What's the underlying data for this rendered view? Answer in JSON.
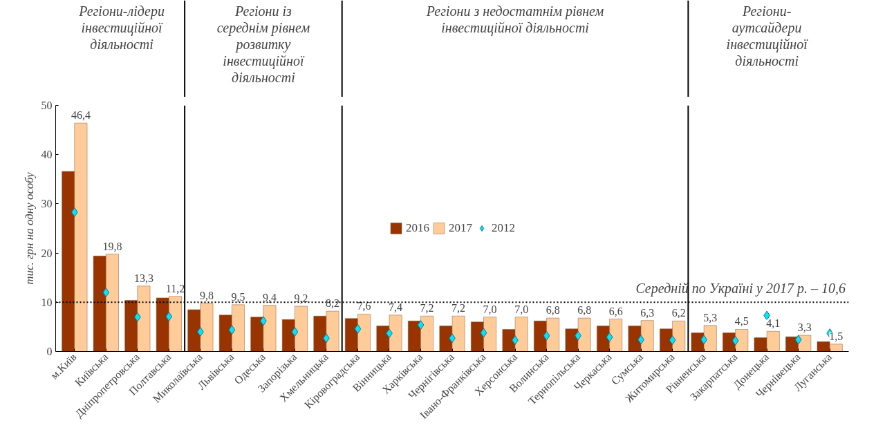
{
  "chart_data": {
    "type": "bar",
    "ylabel": "тис. грн на одну особу",
    "categories": [
      "м.Київ",
      "Київська",
      "Дніпропетровська",
      "Полтавська",
      "Миколаївська",
      "Львівська",
      "Одеська",
      "Запорізька",
      "Хмельницька",
      "Кіровоградська",
      "Вінницька",
      "Харківська",
      "Чернігівська",
      "Івано-Франківська",
      "Херсонська",
      "Волинська",
      "Тернопільська",
      "Черкаська",
      "Сумська",
      "Житомирська",
      "Рівненська",
      "Закарпатська",
      "Донецька",
      "Чернівецька",
      "Луганська"
    ],
    "series": [
      {
        "name": "2016",
        "color": "#993300",
        "values": [
          36.6,
          19.4,
          10.4,
          10.9,
          8.5,
          7.4,
          7.0,
          6.5,
          7.2,
          6.7,
          5.2,
          6.2,
          5.2,
          6.0,
          4.5,
          6.2,
          4.6,
          5.2,
          5.2,
          4.6,
          3.8,
          3.8,
          2.8,
          3.0,
          2.0
        ]
      },
      {
        "name": "2017",
        "color": "#ffcc99",
        "values": [
          46.4,
          19.8,
          13.3,
          11.2,
          9.8,
          9.5,
          9.4,
          9.2,
          8.2,
          7.6,
          7.4,
          7.2,
          7.2,
          7.0,
          7.0,
          6.8,
          6.8,
          6.6,
          6.3,
          6.2,
          5.3,
          4.5,
          4.1,
          3.3,
          1.5
        ],
        "value_labels": [
          "46,4",
          "19,8",
          "13,3",
          "11,2",
          "9,8",
          "9,5",
          "9,4",
          "9,2",
          "8,2",
          "7,6",
          "7,4",
          "7,2",
          "7,2",
          "7,0",
          "7,0",
          "6,8",
          "6,8",
          "6,6",
          "6,3",
          "6,2",
          "5,3",
          "4,5",
          "4,1",
          "3,3",
          "1,5"
        ]
      },
      {
        "name": "2012",
        "type": "scatter",
        "marker": "diamond",
        "color": "#00e5ff",
        "values": [
          28.3,
          12.0,
          7.0,
          7.1,
          4.0,
          4.4,
          6.2,
          4.0,
          2.7,
          4.6,
          3.7,
          5.4,
          2.7,
          3.8,
          2.3,
          3.2,
          3.2,
          2.9,
          2.4,
          2.3,
          2.4,
          2.2,
          7.3,
          2.4,
          3.7
        ]
      }
    ],
    "ylim": [
      0,
      50
    ],
    "yticks": [
      0,
      10,
      20,
      30,
      40,
      50
    ],
    "grid": false,
    "legend": "center",
    "ref_lines": [
      {
        "axis": "y",
        "value": 10,
        "label": "Середній по Україні у 2017 р. – 10,6",
        "line_style": "dotted",
        "color": "#000000"
      }
    ],
    "annotations": [
      "Регіони-лідери\nінвестиційної\nдіяльності",
      "Регіони із\nсереднім рівнем\nрозвитку\nінвестиційної\nдіяльності",
      "Регіони з недостатнім рівнем\nінвестиційної діяльності",
      "Регіони-\nаутсайдери\nінвестиційної\nдіяльності"
    ]
  }
}
